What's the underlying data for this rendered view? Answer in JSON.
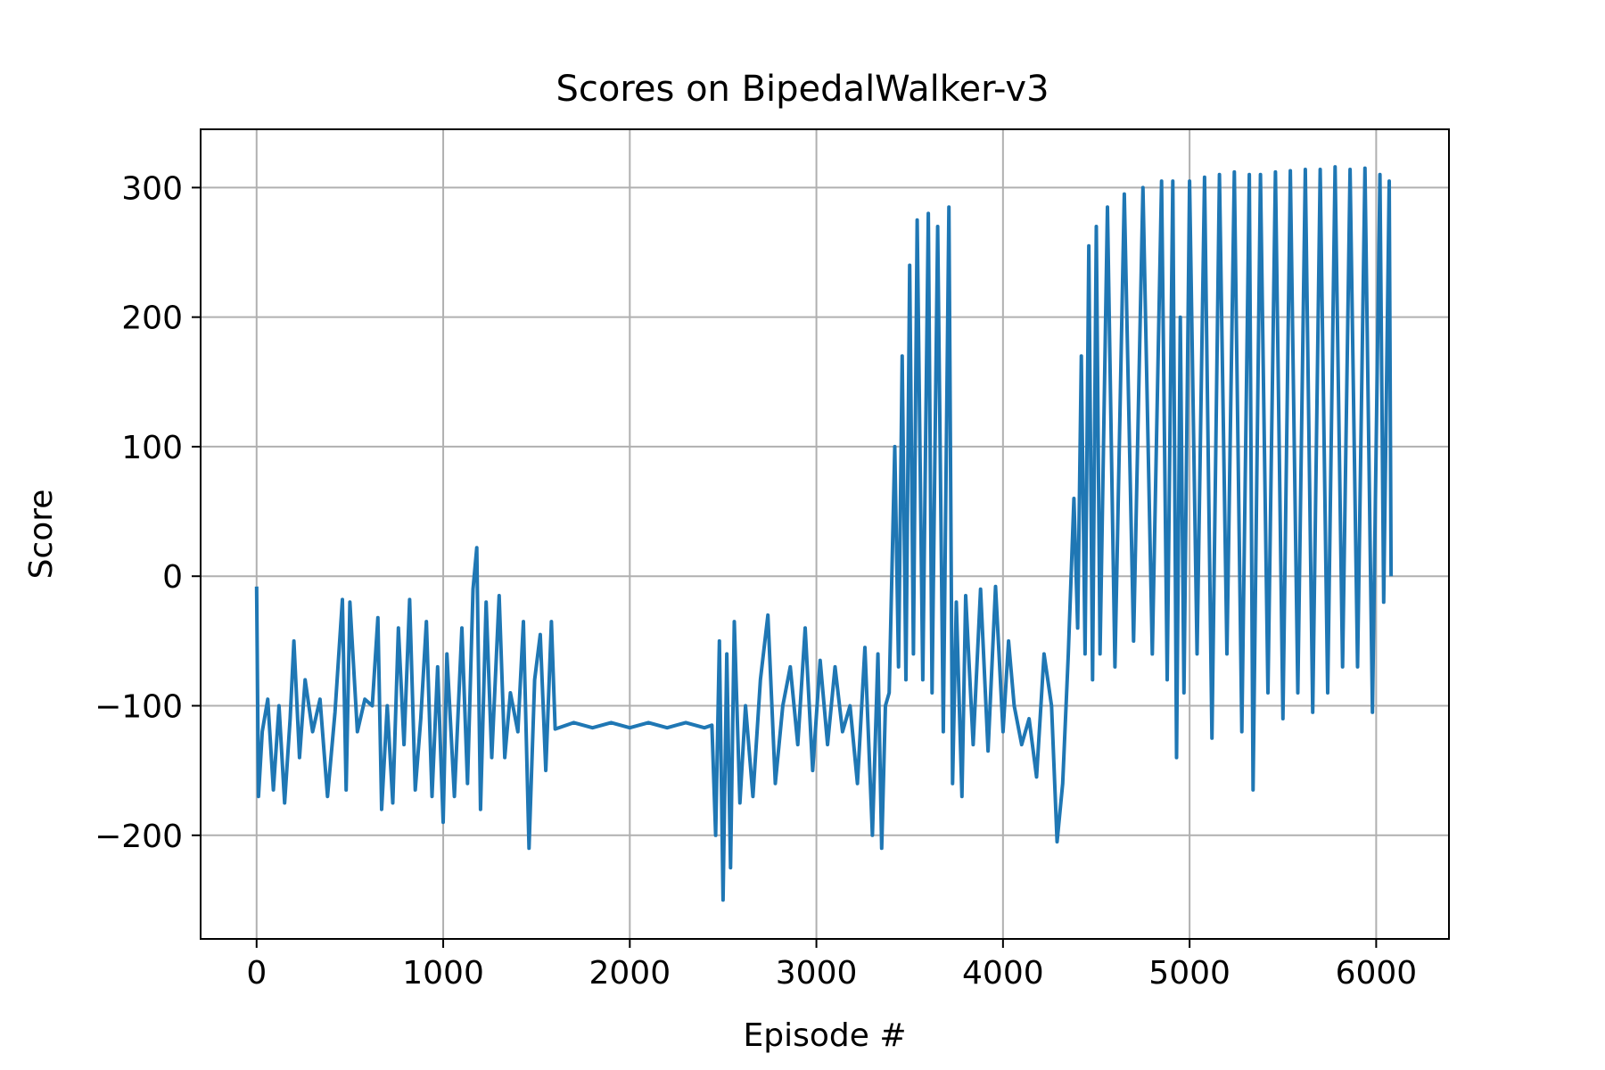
{
  "chart_data": {
    "type": "line",
    "title": "Scores on BipedalWalker-v3",
    "xlabel": "Episode #",
    "ylabel": "Score",
    "xlim": [
      -300,
      6390
    ],
    "ylim": [
      -280,
      345
    ],
    "grid": true,
    "legend": "none",
    "xticks": [
      0,
      1000,
      2000,
      3000,
      4000,
      5000,
      6000
    ],
    "xtick_labels": [
      "0",
      "1000",
      "2000",
      "3000",
      "4000",
      "5000",
      "6000"
    ],
    "yticks": [
      -200,
      -100,
      0,
      100,
      200,
      300
    ],
    "ytick_labels": [
      "−200",
      "−100",
      "0",
      "100",
      "200",
      "300"
    ],
    "colors": {
      "line": "#1f77b4",
      "grid": "#b0b0b0",
      "axes": "#000000"
    },
    "series": [
      {
        "points": [
          [
            0,
            -8
          ],
          [
            10,
            -170
          ],
          [
            30,
            -120
          ],
          [
            60,
            -95
          ],
          [
            90,
            -165
          ],
          [
            120,
            -100
          ],
          [
            150,
            -175
          ],
          [
            180,
            -110
          ],
          [
            200,
            -50
          ],
          [
            230,
            -140
          ],
          [
            260,
            -80
          ],
          [
            300,
            -120
          ],
          [
            340,
            -95
          ],
          [
            380,
            -170
          ],
          [
            420,
            -105
          ],
          [
            460,
            -18
          ],
          [
            480,
            -165
          ],
          [
            500,
            -20
          ],
          [
            540,
            -120
          ],
          [
            580,
            -95
          ],
          [
            620,
            -100
          ],
          [
            650,
            -32
          ],
          [
            670,
            -180
          ],
          [
            700,
            -100
          ],
          [
            730,
            -175
          ],
          [
            760,
            -40
          ],
          [
            790,
            -130
          ],
          [
            820,
            -18
          ],
          [
            850,
            -165
          ],
          [
            880,
            -110
          ],
          [
            910,
            -35
          ],
          [
            940,
            -170
          ],
          [
            970,
            -70
          ],
          [
            1000,
            -190
          ],
          [
            1020,
            -60
          ],
          [
            1060,
            -170
          ],
          [
            1100,
            -40
          ],
          [
            1130,
            -160
          ],
          [
            1160,
            -10
          ],
          [
            1180,
            22
          ],
          [
            1200,
            -180
          ],
          [
            1230,
            -20
          ],
          [
            1260,
            -140
          ],
          [
            1300,
            -15
          ],
          [
            1330,
            -140
          ],
          [
            1360,
            -90
          ],
          [
            1400,
            -120
          ],
          [
            1430,
            -35
          ],
          [
            1460,
            -210
          ],
          [
            1490,
            -80
          ],
          [
            1520,
            -45
          ],
          [
            1550,
            -150
          ],
          [
            1580,
            -35
          ],
          [
            1600,
            -118
          ],
          [
            1700,
            -113
          ],
          [
            1800,
            -117
          ],
          [
            1900,
            -113
          ],
          [
            2000,
            -117
          ],
          [
            2100,
            -113
          ],
          [
            2200,
            -117
          ],
          [
            2300,
            -113
          ],
          [
            2400,
            -117
          ],
          [
            2440,
            -115
          ],
          [
            2460,
            -200
          ],
          [
            2480,
            -50
          ],
          [
            2500,
            -250
          ],
          [
            2520,
            -60
          ],
          [
            2540,
            -225
          ],
          [
            2560,
            -35
          ],
          [
            2590,
            -175
          ],
          [
            2620,
            -100
          ],
          [
            2660,
            -170
          ],
          [
            2700,
            -80
          ],
          [
            2740,
            -30
          ],
          [
            2780,
            -160
          ],
          [
            2820,
            -100
          ],
          [
            2860,
            -70
          ],
          [
            2900,
            -130
          ],
          [
            2940,
            -40
          ],
          [
            2980,
            -150
          ],
          [
            3020,
            -65
          ],
          [
            3060,
            -130
          ],
          [
            3100,
            -70
          ],
          [
            3140,
            -120
          ],
          [
            3180,
            -100
          ],
          [
            3220,
            -160
          ],
          [
            3260,
            -55
          ],
          [
            3300,
            -200
          ],
          [
            3330,
            -60
          ],
          [
            3350,
            -210
          ],
          [
            3370,
            -100
          ],
          [
            3390,
            -90
          ],
          [
            3420,
            100
          ],
          [
            3440,
            -70
          ],
          [
            3460,
            170
          ],
          [
            3480,
            -80
          ],
          [
            3500,
            240
          ],
          [
            3520,
            -60
          ],
          [
            3540,
            275
          ],
          [
            3570,
            -80
          ],
          [
            3600,
            280
          ],
          [
            3620,
            -90
          ],
          [
            3650,
            270
          ],
          [
            3680,
            -120
          ],
          [
            3710,
            285
          ],
          [
            3730,
            -160
          ],
          [
            3750,
            -20
          ],
          [
            3780,
            -170
          ],
          [
            3800,
            -15
          ],
          [
            3840,
            -130
          ],
          [
            3880,
            -10
          ],
          [
            3920,
            -135
          ],
          [
            3960,
            -8
          ],
          [
            4000,
            -120
          ],
          [
            4030,
            -50
          ],
          [
            4060,
            -100
          ],
          [
            4100,
            -130
          ],
          [
            4140,
            -110
          ],
          [
            4180,
            -155
          ],
          [
            4220,
            -60
          ],
          [
            4260,
            -100
          ],
          [
            4290,
            -205
          ],
          [
            4320,
            -160
          ],
          [
            4350,
            -60
          ],
          [
            4380,
            60
          ],
          [
            4400,
            -40
          ],
          [
            4420,
            170
          ],
          [
            4440,
            -60
          ],
          [
            4460,
            255
          ],
          [
            4480,
            -80
          ],
          [
            4500,
            270
          ],
          [
            4520,
            -60
          ],
          [
            4560,
            285
          ],
          [
            4600,
            -70
          ],
          [
            4650,
            295
          ],
          [
            4700,
            -50
          ],
          [
            4750,
            300
          ],
          [
            4800,
            -60
          ],
          [
            4850,
            305
          ],
          [
            4880,
            -80
          ],
          [
            4910,
            305
          ],
          [
            4930,
            -140
          ],
          [
            4950,
            200
          ],
          [
            4970,
            -90
          ],
          [
            5000,
            305
          ],
          [
            5040,
            -60
          ],
          [
            5080,
            308
          ],
          [
            5120,
            -125
          ],
          [
            5160,
            310
          ],
          [
            5200,
            -60
          ],
          [
            5240,
            312
          ],
          [
            5280,
            -120
          ],
          [
            5320,
            310
          ],
          [
            5340,
            -165
          ],
          [
            5380,
            310
          ],
          [
            5420,
            -90
          ],
          [
            5460,
            312
          ],
          [
            5500,
            -110
          ],
          [
            5540,
            313
          ],
          [
            5580,
            -90
          ],
          [
            5620,
            314
          ],
          [
            5660,
            -105
          ],
          [
            5700,
            314
          ],
          [
            5740,
            -90
          ],
          [
            5780,
            316
          ],
          [
            5820,
            -70
          ],
          [
            5860,
            314
          ],
          [
            5900,
            -70
          ],
          [
            5940,
            315
          ],
          [
            5980,
            -105
          ],
          [
            6020,
            310
          ],
          [
            6040,
            -20
          ],
          [
            6070,
            305
          ],
          [
            6080,
            0
          ]
        ]
      }
    ]
  }
}
